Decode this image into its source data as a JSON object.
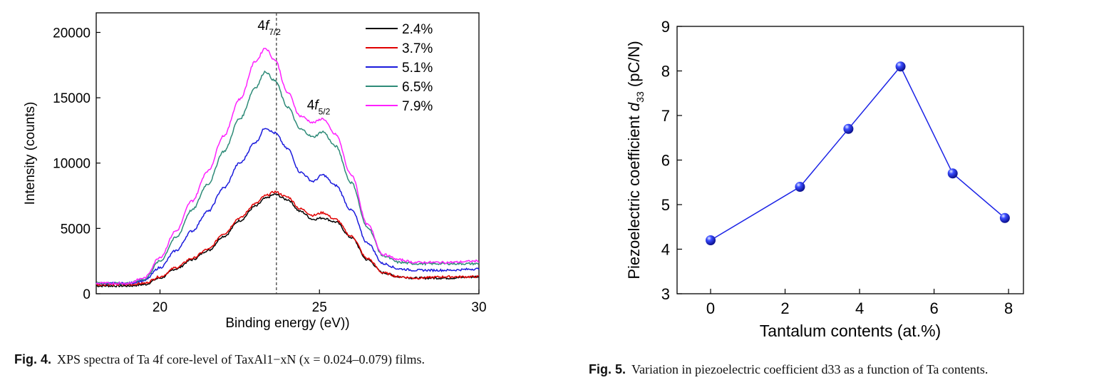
{
  "chart_data": [
    {
      "type": "line",
      "xlabel": "Binding energy (eV))",
      "ylabel": "Intensity (counts)",
      "xlim": [
        18,
        30
      ],
      "ylim": [
        0,
        21500
      ],
      "xticks": [
        20,
        25,
        30
      ],
      "yticks": [
        0,
        5000,
        10000,
        15000,
        20000
      ],
      "grid": false,
      "legend_position": "top-right",
      "reference_line_x": 23.65,
      "annotations": [
        {
          "text": "4f",
          "sub": "7/2",
          "x": 23.55,
          "y": 20200
        },
        {
          "text": "4f",
          "sub": "5/2",
          "x": 25.1,
          "y": 14100
        }
      ],
      "x": [
        18,
        19,
        19.5,
        20,
        20.5,
        21,
        21.5,
        22,
        22.5,
        23,
        23.3,
        23.6,
        24,
        24.4,
        24.8,
        25.1,
        25.5,
        26,
        26.5,
        27,
        27.5,
        28,
        29,
        30
      ],
      "series": [
        {
          "name": "2.4%",
          "color": "#000000",
          "values": [
            600,
            600,
            700,
            1200,
            1900,
            2600,
            3300,
            4400,
            5600,
            6700,
            7300,
            7600,
            7200,
            6300,
            5700,
            5800,
            5500,
            4300,
            2600,
            1600,
            1300,
            1200,
            1200,
            1300
          ]
        },
        {
          "name": "3.7%",
          "color": "#e00000",
          "values": [
            700,
            700,
            800,
            1300,
            2000,
            2700,
            3400,
            4600,
            5800,
            6900,
            7500,
            7800,
            7400,
            6500,
            6000,
            6200,
            5700,
            4400,
            2700,
            1600,
            1300,
            1200,
            1300,
            1300
          ]
        },
        {
          "name": "5.1%",
          "color": "#1a1adc",
          "values": [
            800,
            800,
            1000,
            2000,
            3300,
            4800,
            6300,
            8100,
            10000,
            11600,
            12700,
            12300,
            11100,
            9300,
            8600,
            9100,
            8300,
            6400,
            3900,
            2300,
            1900,
            1800,
            1800,
            1900
          ]
        },
        {
          "name": "6.5%",
          "color": "#2e8b78",
          "values": [
            800,
            800,
            1100,
            2500,
            4300,
            6400,
            8400,
            10900,
            13400,
            15800,
            17000,
            16300,
            14300,
            12600,
            12000,
            12400,
            11300,
            8500,
            5100,
            2900,
            2400,
            2300,
            2300,
            2300
          ]
        },
        {
          "name": "7.9%",
          "color": "#ff20ff",
          "values": [
            800,
            800,
            1200,
            2800,
            4800,
            7100,
            9400,
            12100,
            14900,
            17800,
            18800,
            17900,
            15400,
            13600,
            13100,
            13400,
            12200,
            9100,
            5300,
            3000,
            2600,
            2400,
            2400,
            2500
          ]
        }
      ]
    },
    {
      "type": "scatter",
      "xlabel": "Tantalum contents (at.%)",
      "ylabel": "Piezoelectric coefficient",
      "ylabel_symbol": "d",
      "ylabel_sub": "33",
      "ylabel_unit": "(pC/N)",
      "xlim": [
        -0.9,
        8.4
      ],
      "ylim": [
        3,
        9
      ],
      "xticks": [
        0,
        2,
        4,
        6,
        8
      ],
      "yticks": [
        3,
        4,
        5,
        6,
        7,
        8,
        9
      ],
      "grid": false,
      "color": "#1a22e6",
      "connected": true,
      "x": [
        0,
        2.4,
        3.7,
        5.1,
        6.5,
        7.9
      ],
      "values": [
        4.2,
        5.4,
        6.7,
        8.1,
        5.7,
        4.7
      ]
    }
  ],
  "captions": {
    "fig4_label": "Fig. 4.",
    "fig4_text": "XPS spectra of Ta 4f core-level of TaxAl1−xN (x = 0.024–0.079) films.",
    "fig5_label": "Fig. 5.",
    "fig5_text": "Variation in piezoelectric coefficient d33 as a function of Ta contents."
  }
}
